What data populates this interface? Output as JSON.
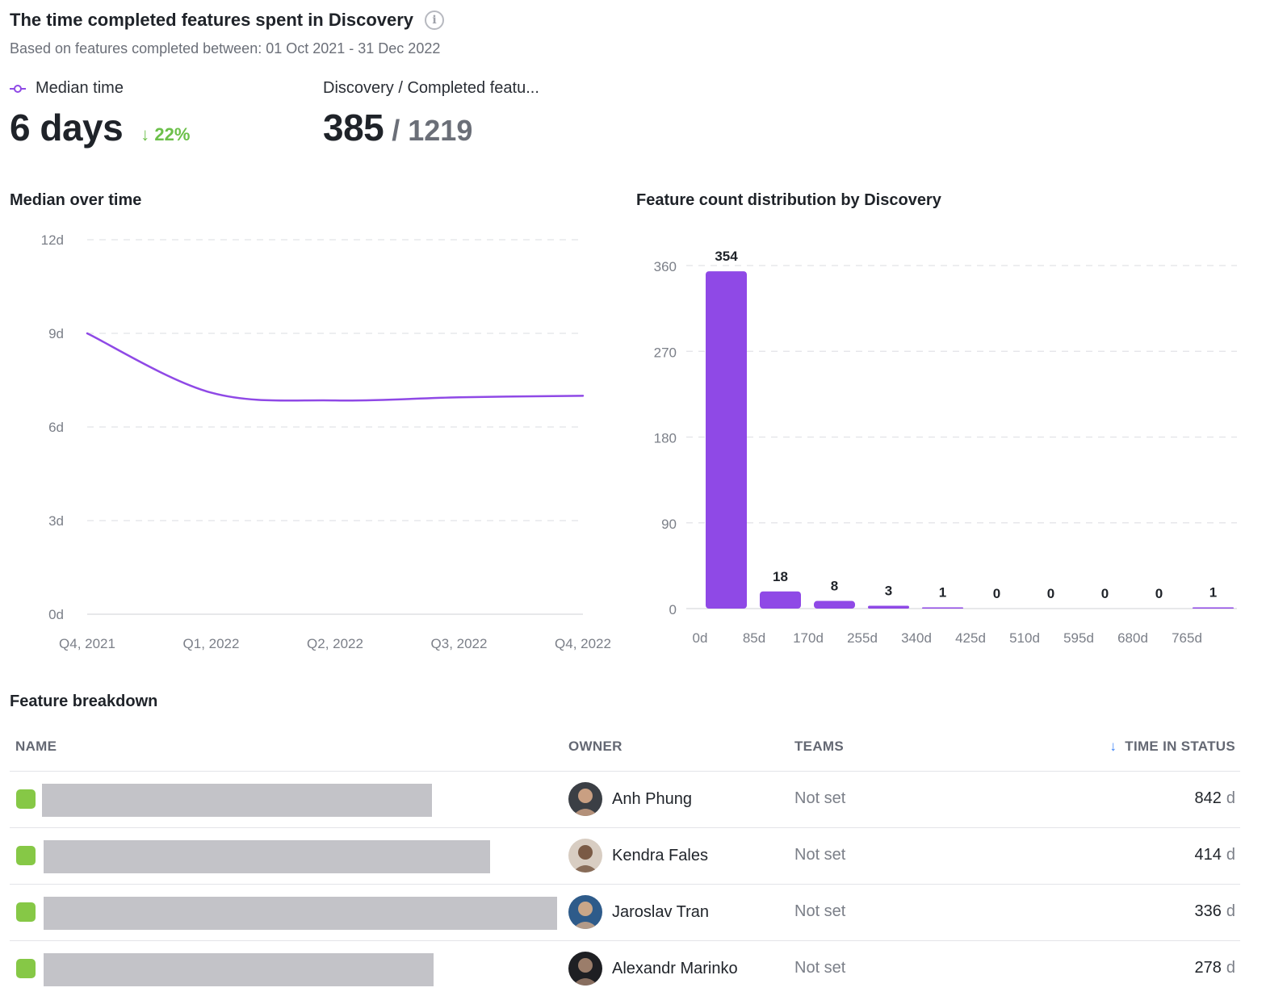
{
  "header": {
    "title": "The time completed features spent in Discovery",
    "info_icon": "info-icon",
    "subtitle": "Based on features completed between: 01 Oct 2021 - 31 Dec 2022"
  },
  "metrics": {
    "median_label": "Median time",
    "median_value": "6 days",
    "median_delta": "22%",
    "median_delta_direction": "down",
    "ratio_label": "Discovery / Completed featu...",
    "ratio_value": "385",
    "ratio_separator": "/",
    "ratio_total": "1219"
  },
  "line_section": {
    "title": "Median over time"
  },
  "bar_section": {
    "title": "Feature count distribution by Discovery"
  },
  "colors": {
    "accent": "#8f49e6",
    "positive": "#6cc04a",
    "status": "#86c846",
    "sort": "#3b82f6"
  },
  "chart_data": [
    {
      "type": "line",
      "title": "Median over time",
      "x": [
        "Q4, 2021",
        "Q1, 2022",
        "Q2, 2022",
        "Q3, 2022",
        "Q4, 2022"
      ],
      "y_tick_labels": [
        "0d",
        "3d",
        "6d",
        "9d",
        "12d"
      ],
      "y_ticks": [
        0,
        3,
        6,
        9,
        12
      ],
      "ylim": [
        0,
        12
      ],
      "grid": true,
      "series": [
        {
          "values": [
            9.0,
            7.1,
            6.85,
            6.95,
            7.0
          ]
        }
      ]
    },
    {
      "type": "bar",
      "title": "Feature count distribution by Discovery",
      "categories": [
        "0d",
        "85d",
        "170d",
        "255d",
        "340d",
        "425d",
        "510d",
        "595d",
        "680d",
        "765d"
      ],
      "values": [
        354,
        18,
        8,
        3,
        1,
        0,
        0,
        0,
        0,
        1
      ],
      "value_labels": [
        "354",
        "18",
        "8",
        "3",
        "1",
        "0",
        "0",
        "0",
        "0",
        "1"
      ],
      "y_tick_labels": [
        "0",
        "90",
        "180",
        "270",
        "360"
      ],
      "y_ticks": [
        0,
        90,
        180,
        270,
        360
      ],
      "ylim": [
        0,
        360
      ],
      "grid": true
    }
  ],
  "table": {
    "title": "Feature breakdown",
    "columns": {
      "name": "NAME",
      "owner": "OWNER",
      "teams": "TEAMS",
      "time": "TIME IN STATUS"
    },
    "sort_icon": "arrow-down-icon",
    "rows": [
      {
        "owner": "Anh Phung",
        "teams": "Not set",
        "time": "842",
        "unit": "d",
        "name_fill": 0.76
      },
      {
        "owner": "Kendra Fales",
        "teams": "Not set",
        "time": "414",
        "unit": "d",
        "name_fill": 0.87
      },
      {
        "owner": "Jaroslav Tran",
        "teams": "Not set",
        "time": "336",
        "unit": "d",
        "name_fill": 1.0
      },
      {
        "owner": "Alexandr Marinko",
        "teams": "Not set",
        "time": "278",
        "unit": "d",
        "name_fill": 0.76
      }
    ]
  }
}
